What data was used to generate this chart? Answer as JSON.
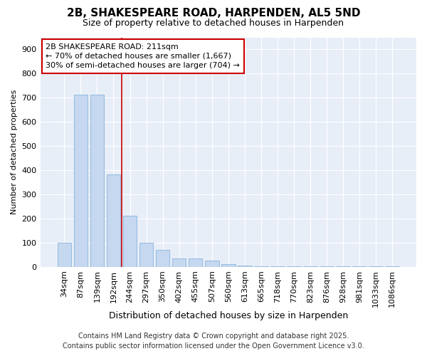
{
  "title1": "2B, SHAKESPEARE ROAD, HARPENDEN, AL5 5ND",
  "title2": "Size of property relative to detached houses in Harpenden",
  "xlabel": "Distribution of detached houses by size in Harpenden",
  "ylabel": "Number of detached properties",
  "categories": [
    "34sqm",
    "87sqm",
    "139sqm",
    "192sqm",
    "244sqm",
    "297sqm",
    "350sqm",
    "402sqm",
    "455sqm",
    "507sqm",
    "560sqm",
    "613sqm",
    "665sqm",
    "718sqm",
    "770sqm",
    "823sqm",
    "876sqm",
    "928sqm",
    "981sqm",
    "1033sqm",
    "1086sqm"
  ],
  "values": [
    100,
    713,
    713,
    382,
    210,
    100,
    70,
    34,
    34,
    25,
    10,
    5,
    3,
    2,
    1,
    1,
    1,
    1,
    1,
    1,
    1
  ],
  "bar_color": "#c5d8f0",
  "bar_edge_color": "#99bde0",
  "vline_x": 3.5,
  "vline_color": "#cc0000",
  "annotation_title": "2B SHAKESPEARE ROAD: 211sqm",
  "annotation_line1": "← 70% of detached houses are smaller (1,667)",
  "annotation_line2": "30% of semi-detached houses are larger (704) →",
  "footnote1": "Contains HM Land Registry data © Crown copyright and database right 2025.",
  "footnote2": "Contains public sector information licensed under the Open Government Licence v3.0.",
  "ylim_max": 950,
  "yticks": [
    0,
    100,
    200,
    300,
    400,
    500,
    600,
    700,
    800,
    900
  ],
  "fig_bg": "#ffffff",
  "ax_bg": "#e8eef8",
  "grid_color": "#ffffff",
  "title1_fontsize": 11,
  "title2_fontsize": 9,
  "xlabel_fontsize": 9,
  "ylabel_fontsize": 8,
  "tick_fontsize": 8,
  "annot_fontsize": 8,
  "footnote_fontsize": 7
}
